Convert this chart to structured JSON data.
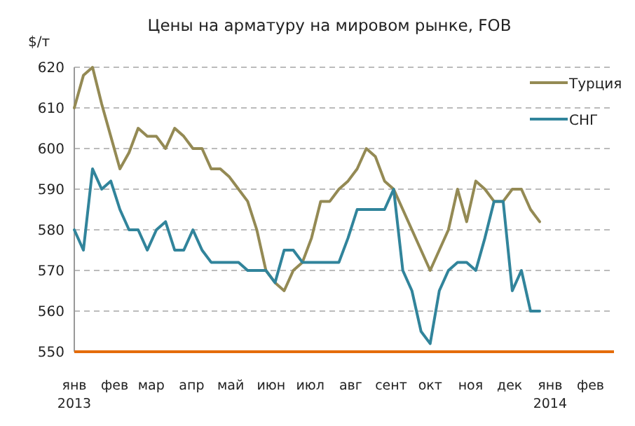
{
  "chart_data": {
    "type": "line",
    "title": "Цены на арматуру на мировом рынке, FOB",
    "ylabel": "$/т",
    "x": [
      "2013-01-01",
      "2013-01-08",
      "2013-01-15",
      "2013-01-22",
      "2013-01-29",
      "2013-02-05",
      "2013-02-12",
      "2013-02-19",
      "2013-02-26",
      "2013-03-05",
      "2013-03-12",
      "2013-03-19",
      "2013-03-26",
      "2013-04-02",
      "2013-04-09",
      "2013-04-16",
      "2013-04-23",
      "2013-04-30",
      "2013-05-07",
      "2013-05-14",
      "2013-05-21",
      "2013-05-28",
      "2013-06-04",
      "2013-06-11",
      "2013-06-18",
      "2013-06-25",
      "2013-07-02",
      "2013-07-09",
      "2013-07-16",
      "2013-07-23",
      "2013-07-30",
      "2013-08-06",
      "2013-08-13",
      "2013-08-20",
      "2013-08-27",
      "2013-09-03",
      "2013-09-10",
      "2013-09-17",
      "2013-09-24",
      "2013-10-01",
      "2013-10-08",
      "2013-10-15",
      "2013-10-22",
      "2013-10-29",
      "2013-11-05",
      "2013-11-12",
      "2013-11-19",
      "2013-11-26",
      "2013-12-03",
      "2013-12-10",
      "2013-12-17",
      "2013-12-24"
    ],
    "series": [
      {
        "name": "Турция",
        "color": "#948a54",
        "values": [
          610,
          618,
          620,
          611,
          603,
          595,
          599,
          605,
          603,
          603,
          600,
          605,
          603,
          600,
          600,
          595,
          595,
          593,
          590,
          587,
          580,
          570,
          567,
          565,
          570,
          572,
          578,
          587,
          587,
          590,
          592,
          595,
          600,
          598,
          592,
          590,
          585,
          580,
          575,
          570,
          575,
          580,
          590,
          582,
          592,
          590,
          587,
          587,
          590,
          590,
          585,
          582
        ]
      },
      {
        "name": "СНГ",
        "color": "#31849b",
        "values": [
          580,
          575,
          595,
          590,
          592,
          585,
          580,
          580,
          575,
          580,
          582,
          575,
          575,
          580,
          575,
          572,
          572,
          572,
          572,
          570,
          570,
          570,
          567,
          575,
          575,
          572,
          572,
          572,
          572,
          572,
          578,
          585,
          585,
          585,
          585,
          590,
          570,
          565,
          555,
          552,
          565,
          570,
          572,
          572,
          570,
          578,
          587,
          587,
          565,
          570,
          560,
          560
        ]
      }
    ],
    "xlim": [
      "2013-01-01",
      "2014-02-19"
    ],
    "xticks": [
      {
        "value": "2013-01-01",
        "label": "янв\n2013"
      },
      {
        "value": "2013-02-01",
        "label": "фев"
      },
      {
        "value": "2013-03-01",
        "label": "мар"
      },
      {
        "value": "2013-04-01",
        "label": "апр"
      },
      {
        "value": "2013-05-01",
        "label": "май"
      },
      {
        "value": "2013-06-01",
        "label": "июн"
      },
      {
        "value": "2013-07-01",
        "label": "июл"
      },
      {
        "value": "2013-08-01",
        "label": "авг"
      },
      {
        "value": "2013-09-01",
        "label": "сент"
      },
      {
        "value": "2013-10-01",
        "label": "окт"
      },
      {
        "value": "2013-11-01",
        "label": "ноя"
      },
      {
        "value": "2013-12-01",
        "label": "дек"
      },
      {
        "value": "2014-01-01",
        "label": "янв\n2014"
      },
      {
        "value": "2014-02-01",
        "label": "фев"
      }
    ],
    "ylim": [
      550,
      620
    ],
    "yticks": [
      550,
      560,
      570,
      580,
      590,
      600,
      610,
      620
    ],
    "grid": "y",
    "legend": "top right",
    "marker": "none",
    "line_style": "solid"
  }
}
